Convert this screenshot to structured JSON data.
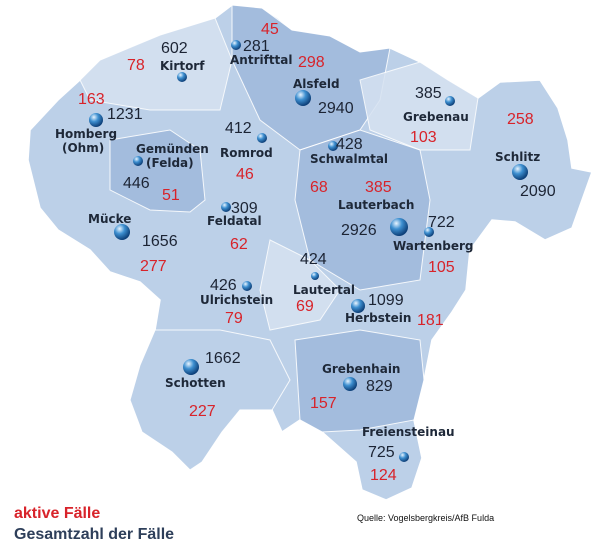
{
  "colors": {
    "active": "#d8232a",
    "total": "#1c2434",
    "map_base": "#bcd0e8",
    "map_dark": "#9fb9dc",
    "map_light": "#d6e2f1"
  },
  "municipalities": [
    {
      "name": "Kirtorf",
      "total": "602",
      "active": "78"
    },
    {
      "name": "Antrifttal",
      "total": "281",
      "active": "45"
    },
    {
      "name": "Homberg (Ohm)",
      "name_lines": [
        "Homberg",
        "(Ohm)"
      ],
      "total": "1231",
      "active": "163"
    },
    {
      "name": "Gemünden (Felda)",
      "name_lines": [
        "Gemünden",
        "(Felda)"
      ],
      "total": "446",
      "active": "51"
    },
    {
      "name": "Romrod",
      "total": "412",
      "active": "46"
    },
    {
      "name": "Alsfeld",
      "total": "2940",
      "active": "298"
    },
    {
      "name": "Grebenau",
      "total": "385",
      "active": "103"
    },
    {
      "name": "Schlitz",
      "total": "2090",
      "active": "258"
    },
    {
      "name": "Schwalmtal",
      "total": "428",
      "active": "68"
    },
    {
      "name": "Lauterbach",
      "total": "2926",
      "active": "385"
    },
    {
      "name": "Wartenberg",
      "total": "722",
      "active": "105"
    },
    {
      "name": "Feldatal",
      "total": "309",
      "active": "62"
    },
    {
      "name": "Mücke",
      "total": "1656",
      "active": "277"
    },
    {
      "name": "Lautertal",
      "total": "424",
      "active": "69"
    },
    {
      "name": "Ulrichstein",
      "total": "426",
      "active": "79"
    },
    {
      "name": "Herbstein",
      "total": "1099",
      "active": "181"
    },
    {
      "name": "Schotten",
      "total": "1662",
      "active": "227"
    },
    {
      "name": "Grebenhain",
      "total": "829",
      "active": "157"
    },
    {
      "name": "Freiensteinau",
      "total": "725",
      "active": "124"
    }
  ],
  "legend": {
    "active_label": "aktive Fälle",
    "total_label": "Gesamtzahl der Fälle"
  },
  "source": "Quelle: Vogelsbergkreis/AfB Fulda"
}
